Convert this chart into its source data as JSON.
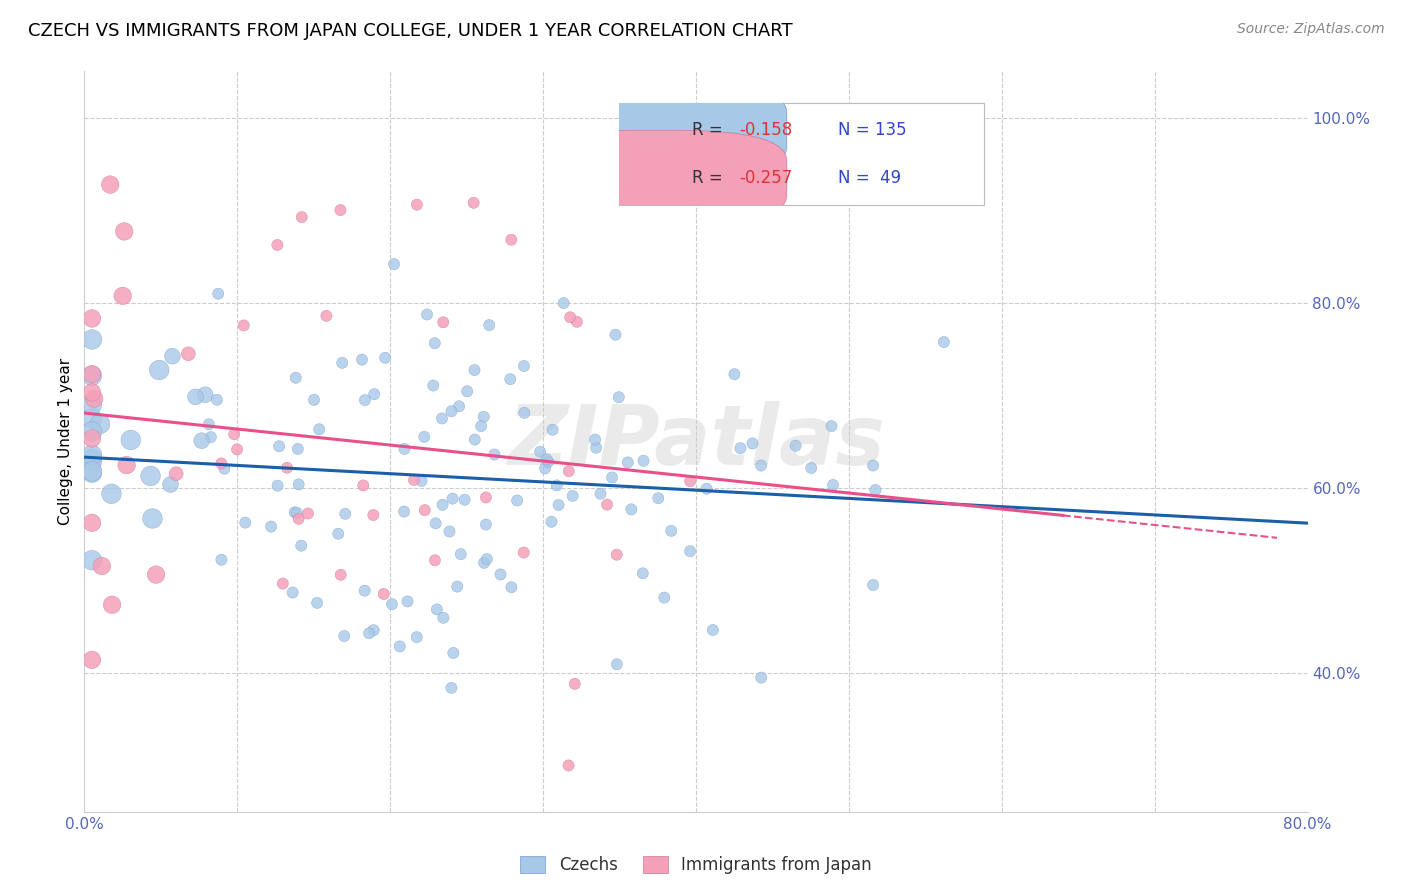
{
  "title": "CZECH VS IMMIGRANTS FROM JAPAN COLLEGE, UNDER 1 YEAR CORRELATION CHART",
  "source": "Source: ZipAtlas.com",
  "ylabel": "College, Under 1 year",
  "xlim": [
    0.0,
    0.8
  ],
  "ylim": [
    0.25,
    1.05
  ],
  "blue_color": "#a8c8e8",
  "pink_color": "#f4a0b8",
  "blue_line_color": "#1a5fa8",
  "pink_line_color": "#e8508a",
  "legend_blue_r": "-0.158",
  "legend_blue_n": "135",
  "legend_pink_r": "-0.257",
  "legend_pink_n": " 49",
  "watermark": "ZIPatlas",
  "legend_label_blue": "Czechs",
  "legend_label_pink": "Immigrants from Japan",
  "axis_color": "#5566bb",
  "r_color": "#dd3333",
  "n_color": "#3344cc",
  "grid_color": "#cccccc",
  "title_fontsize": 13,
  "tick_fontsize": 11,
  "ylabel_fontsize": 11
}
